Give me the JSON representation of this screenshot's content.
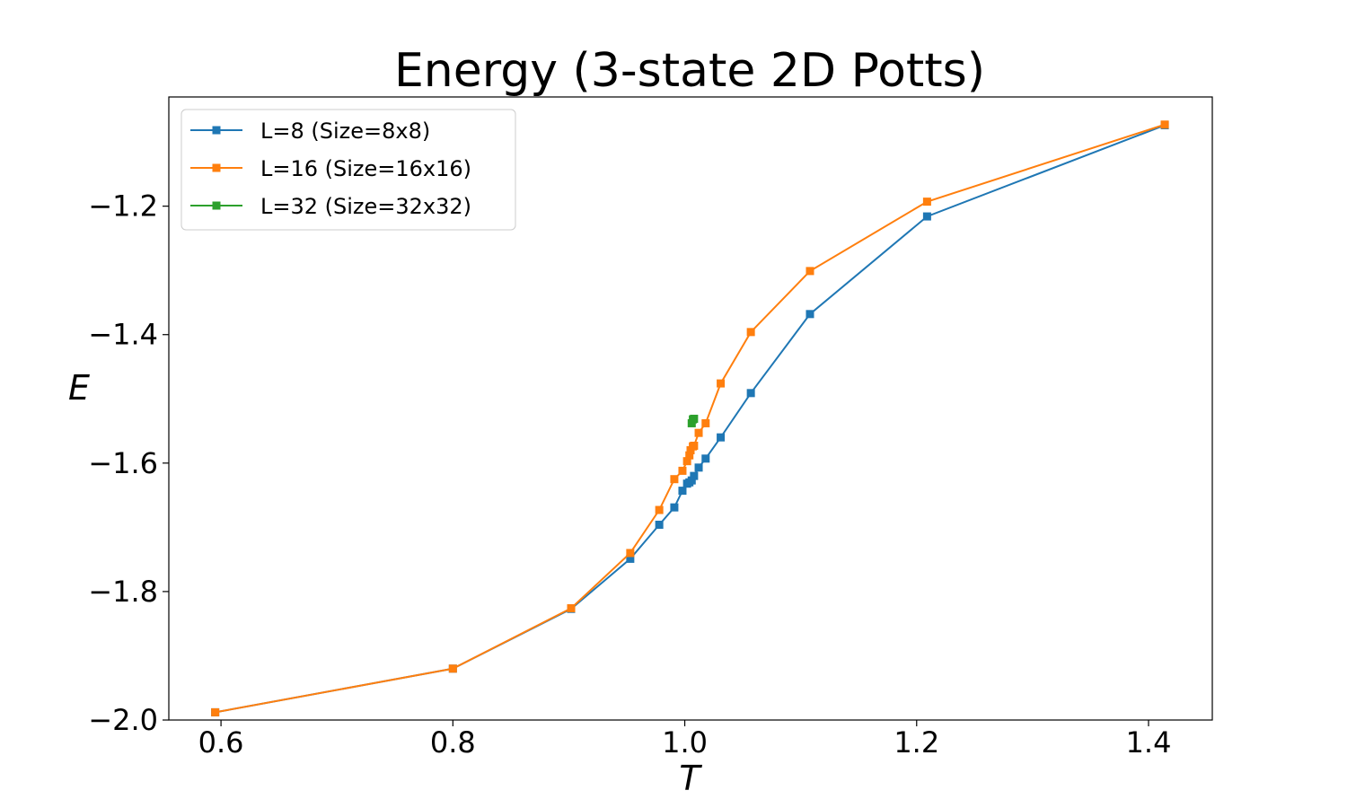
{
  "chart_data": {
    "type": "line",
    "title": "Energy (3-state 2D Potts)",
    "xlabel": "T",
    "ylabel": "E",
    "xlim": [
      0.555,
      1.455
    ],
    "ylim": [
      -2.0,
      -1.03
    ],
    "xticks": [
      0.6,
      0.8,
      1.0,
      1.2,
      1.4
    ],
    "xtick_labels": [
      "0.6",
      "0.8",
      "1.0",
      "1.2",
      "1.4"
    ],
    "yticks": [
      -2.0,
      -1.8,
      -1.6,
      -1.4,
      -1.2
    ],
    "ytick_labels": [
      "−2.0",
      "−1.8",
      "−1.6",
      "−1.4",
      "−1.2"
    ],
    "grid": false,
    "legend_position": "top-left",
    "series": [
      {
        "name": "L=8 (Size=8x8)",
        "color": "#1f77b4",
        "marker": "square",
        "x": [
          0.595,
          0.8,
          0.902,
          0.953,
          0.978,
          0.991,
          0.998,
          1.002,
          1.004,
          1.006,
          1.008,
          1.012,
          1.018,
          1.031,
          1.057,
          1.108,
          1.209,
          1.414
        ],
        "y": [
          -1.988,
          -1.92,
          -1.827,
          -1.749,
          -1.696,
          -1.669,
          -1.643,
          -1.632,
          -1.63,
          -1.627,
          -1.62,
          -1.607,
          -1.593,
          -1.56,
          -1.491,
          -1.368,
          -1.216,
          -1.074
        ]
      },
      {
        "name": "L=16 (Size=16x16)",
        "color": "#ff7f0e",
        "marker": "square",
        "x": [
          0.595,
          0.8,
          0.902,
          0.953,
          0.978,
          0.991,
          0.998,
          1.002,
          1.004,
          1.005,
          1.007,
          1.008,
          1.012,
          1.018,
          1.031,
          1.057,
          1.108,
          1.209,
          1.414
        ],
        "y": [
          -1.988,
          -1.92,
          -1.826,
          -1.74,
          -1.673,
          -1.625,
          -1.612,
          -1.597,
          -1.588,
          -1.58,
          -1.574,
          -1.573,
          -1.553,
          -1.538,
          -1.476,
          -1.396,
          -1.301,
          -1.193,
          -1.073
        ]
      },
      {
        "name": "L=32 (Size=32x32)",
        "color": "#2ca02c",
        "marker": "square",
        "x": [
          1.006,
          1.007,
          1.008
        ],
        "y": [
          -1.538,
          -1.532,
          -1.531
        ]
      }
    ]
  }
}
